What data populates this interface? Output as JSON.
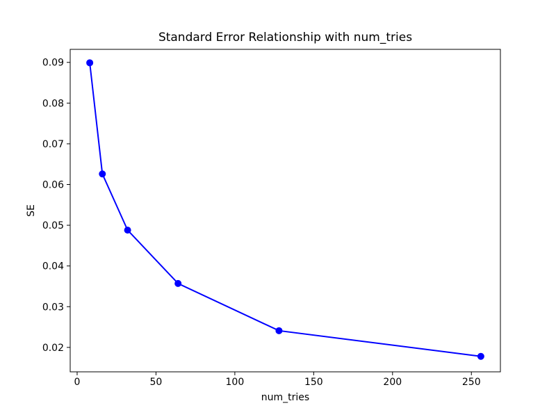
{
  "chart_data": {
    "type": "line",
    "title": "Standard Error Relationship with num_tries",
    "xlabel": "num_tries",
    "ylabel": "SE",
    "x": [
      8,
      16,
      32,
      64,
      128,
      256
    ],
    "y": [
      0.0899,
      0.0626,
      0.0488,
      0.0357,
      0.0241,
      0.0178
    ],
    "x_ticks": [
      0,
      50,
      100,
      150,
      200,
      250
    ],
    "x_tick_labels": [
      "0",
      "50",
      "100",
      "150",
      "200",
      "250"
    ],
    "y_ticks": [
      0.02,
      0.03,
      0.04,
      0.05,
      0.06,
      0.07,
      0.08,
      0.09
    ],
    "y_tick_labels": [
      "0.02",
      "0.03",
      "0.04",
      "0.05",
      "0.06",
      "0.07",
      "0.08",
      "0.09"
    ],
    "xlim": [
      -4.4,
      268.4
    ],
    "ylim": [
      0.014,
      0.0932
    ],
    "line_color": "#0000ff",
    "marker": "o",
    "marker_radius": 5,
    "line_width": 2,
    "grid": false,
    "legend": null,
    "spine_color": "#000000",
    "background_color": "#ffffff"
  }
}
